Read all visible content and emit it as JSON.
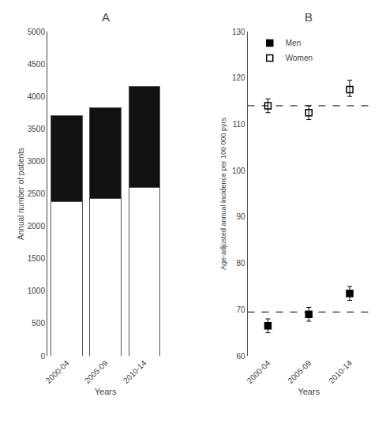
{
  "chart_data": [
    {
      "type": "bar",
      "title": "A",
      "stacked": true,
      "categories": [
        "2000-04",
        "2005-09",
        "2010-14"
      ],
      "series": [
        {
          "name": "Women",
          "color": "#ffffff",
          "values": [
            2375,
            2425,
            2600
          ]
        },
        {
          "name": "Men",
          "color": "#111111",
          "values": [
            1325,
            1405,
            1550
          ]
        }
      ],
      "xlabel": "Years",
      "ylabel": "Annual number of patients",
      "ylim": [
        0,
        5000
      ],
      "yticks": [
        0,
        500,
        1000,
        1500,
        2000,
        2500,
        3000,
        3500,
        4000,
        4500,
        5000
      ],
      "grid": false
    },
    {
      "type": "scatter",
      "title": "B",
      "categories": [
        "2000-04",
        "2005-09",
        "2010-14"
      ],
      "series": [
        {
          "name": "Women",
          "color": "#000000",
          "marker": "open square",
          "values": [
            114.0,
            112.5,
            117.5
          ],
          "error_low": [
            1.5,
            1.5,
            1.5
          ],
          "error_high": [
            1.5,
            1.5,
            2.0
          ],
          "reference_line": 114.0
        },
        {
          "name": "Men",
          "color": "#000000",
          "marker": "filled square",
          "values": [
            66.5,
            69.0,
            73.5
          ],
          "error_low": [
            1.5,
            1.5,
            1.5
          ],
          "error_high": [
            1.5,
            1.5,
            1.5
          ],
          "reference_line": 69.5
        }
      ],
      "xlabel": "Years",
      "ylabel": "Age-adjusted annual incidence per 100 000 pyrs",
      "ylim": [
        60,
        130
      ],
      "yticks": [
        60,
        70,
        80,
        90,
        100,
        110,
        120,
        130
      ],
      "legend": "upper left",
      "grid": false
    }
  ]
}
